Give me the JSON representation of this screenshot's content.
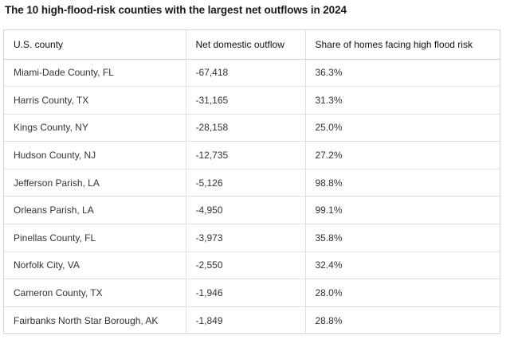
{
  "title": "The 10 high-flood-risk counties with the largest net outflows in 2024",
  "table": {
    "headers": [
      "U.S. county",
      "Net domestic outflow",
      "Share of homes facing high flood risk"
    ],
    "rows": [
      [
        "Miami-Dade County, FL",
        "-67,418",
        "36.3%"
      ],
      [
        "Harris County, TX",
        "-31,165",
        "31.3%"
      ],
      [
        "Kings County, NY",
        "-28,158",
        "25.0%"
      ],
      [
        "Hudson County, NJ",
        "-12,735",
        "27.2%"
      ],
      [
        "Jefferson Parish, LA",
        "-5,126",
        "98.8%"
      ],
      [
        "Orleans Parish, LA",
        "-4,950",
        "99.1%"
      ],
      [
        "Pinellas County, FL",
        "-3,973",
        "35.8%"
      ],
      [
        "Norfolk City, VA",
        "-2,550",
        "32.4%"
      ],
      [
        "Cameron County, TX",
        "-1,946",
        "28.0%"
      ],
      [
        "Fairbanks North Star Borough, AK",
        "-1,849",
        "28.8%"
      ]
    ]
  }
}
